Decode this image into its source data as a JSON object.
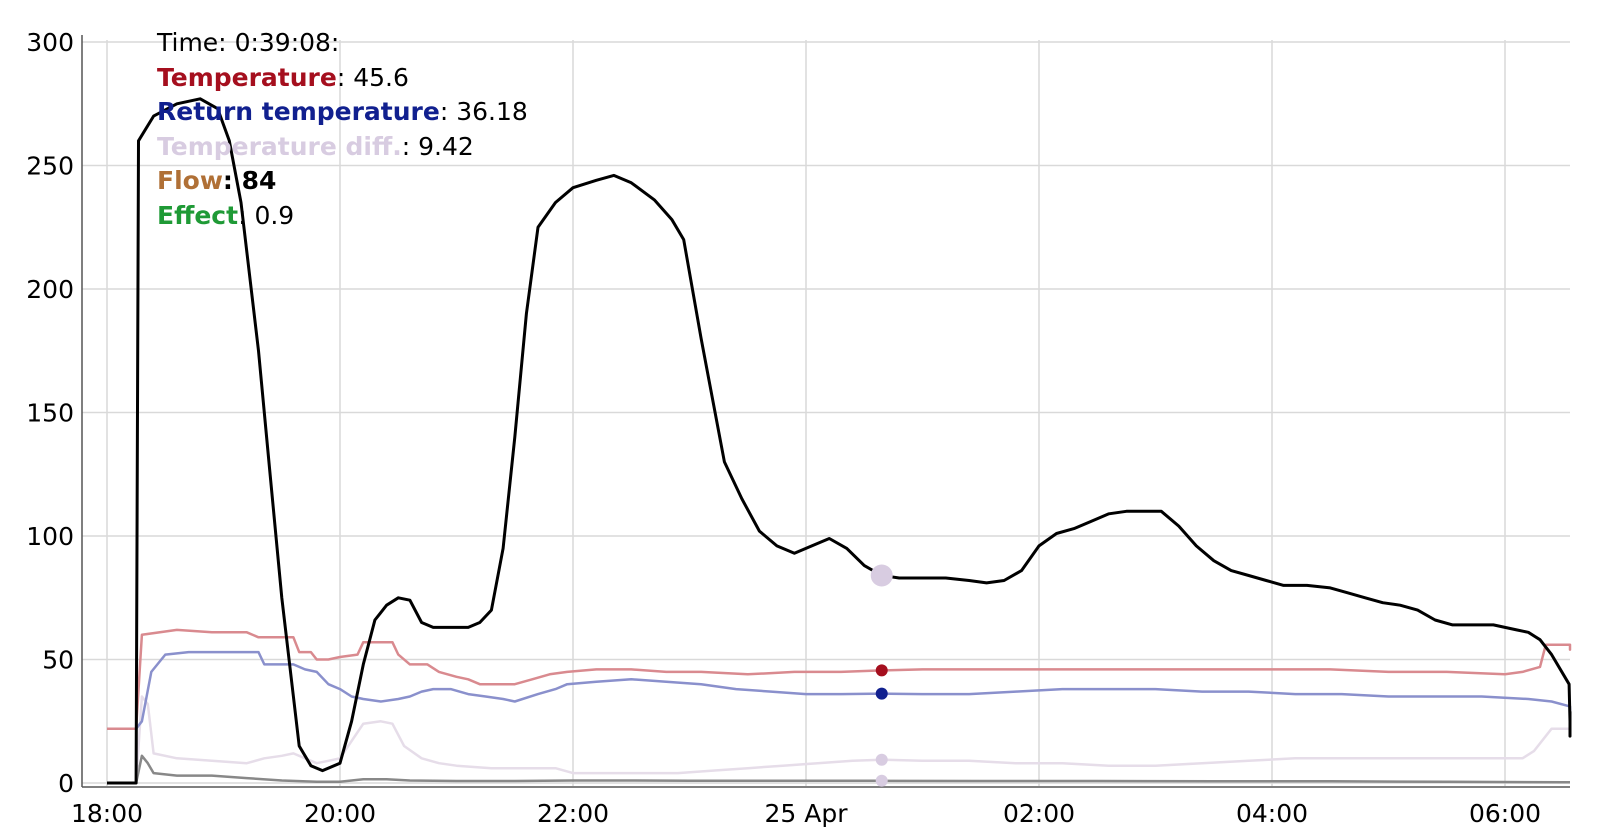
{
  "tooltip": {
    "time_label": "Time:",
    "time_value": "0:39:08:",
    "rows": [
      {
        "name": "Temperature",
        "value": "45.6",
        "color": "#a50f1e"
      },
      {
        "name": "Return temperature",
        "value": "36.18",
        "color": "#11208f"
      },
      {
        "name": "Temperature diff.",
        "value": "9.42",
        "color": "#d8cce1"
      },
      {
        "name": "Flow",
        "value": "84",
        "color": "#b07036",
        "bold_value": true
      },
      {
        "name": "Effect",
        "value": "0.9",
        "color": "#1f9a36"
      }
    ]
  },
  "chart_data": {
    "type": "line",
    "title": "",
    "xlabel": "",
    "ylabel": "",
    "x_unit": "hours since 18:00 on 24 Apr",
    "xlim": [
      0,
      12.75
    ],
    "ylim": [
      0,
      300
    ],
    "yticks": [
      0,
      50,
      100,
      150,
      200,
      250,
      300
    ],
    "xticks": [
      {
        "label": "18:00",
        "x": 0
      },
      {
        "label": "20:00",
        "x": 2
      },
      {
        "label": "22:00",
        "x": 4
      },
      {
        "label": "25 Apr",
        "x": 6
      },
      {
        "label": "02:00",
        "x": 8
      },
      {
        "label": "04:00",
        "x": 10
      },
      {
        "label": "06:00",
        "x": 12
      }
    ],
    "grid": true,
    "hover_x": 6.65,
    "series": [
      {
        "name": "Flow",
        "color": "#000000",
        "width": 3,
        "points": [
          [
            0,
            0
          ],
          [
            0.25,
            0
          ],
          [
            0.27,
            260
          ],
          [
            0.4,
            270
          ],
          [
            0.6,
            275
          ],
          [
            0.8,
            277
          ],
          [
            0.95,
            273
          ],
          [
            1.05,
            260
          ],
          [
            1.15,
            235
          ],
          [
            1.3,
            175
          ],
          [
            1.4,
            125
          ],
          [
            1.5,
            75
          ],
          [
            1.6,
            35
          ],
          [
            1.65,
            15
          ],
          [
            1.75,
            7
          ],
          [
            1.85,
            5
          ],
          [
            2.0,
            8
          ],
          [
            2.1,
            25
          ],
          [
            2.2,
            48
          ],
          [
            2.3,
            66
          ],
          [
            2.4,
            72
          ],
          [
            2.5,
            75
          ],
          [
            2.6,
            74
          ],
          [
            2.7,
            65
          ],
          [
            2.8,
            63
          ],
          [
            3.0,
            63
          ],
          [
            3.1,
            63
          ],
          [
            3.2,
            65
          ],
          [
            3.3,
            70
          ],
          [
            3.4,
            95
          ],
          [
            3.5,
            140
          ],
          [
            3.6,
            190
          ],
          [
            3.7,
            225
          ],
          [
            3.85,
            235
          ],
          [
            4.0,
            241
          ],
          [
            4.2,
            244
          ],
          [
            4.35,
            246
          ],
          [
            4.5,
            243
          ],
          [
            4.7,
            236
          ],
          [
            4.85,
            228
          ],
          [
            4.95,
            220
          ],
          [
            5.1,
            180
          ],
          [
            5.3,
            130
          ],
          [
            5.45,
            115
          ],
          [
            5.6,
            102
          ],
          [
            5.75,
            96
          ],
          [
            5.9,
            93
          ],
          [
            6.05,
            96
          ],
          [
            6.2,
            99
          ],
          [
            6.35,
            95
          ],
          [
            6.5,
            88
          ],
          [
            6.65,
            84
          ],
          [
            6.8,
            83
          ],
          [
            7.0,
            83
          ],
          [
            7.2,
            83
          ],
          [
            7.4,
            82
          ],
          [
            7.55,
            81
          ],
          [
            7.7,
            82
          ],
          [
            7.85,
            86
          ],
          [
            8.0,
            96
          ],
          [
            8.15,
            101
          ],
          [
            8.3,
            103
          ],
          [
            8.45,
            106
          ],
          [
            8.6,
            109
          ],
          [
            8.75,
            110
          ],
          [
            8.9,
            110
          ],
          [
            9.05,
            110
          ],
          [
            9.2,
            104
          ],
          [
            9.35,
            96
          ],
          [
            9.5,
            90
          ],
          [
            9.65,
            86
          ],
          [
            9.8,
            84
          ],
          [
            9.95,
            82
          ],
          [
            10.1,
            80
          ],
          [
            10.3,
            80
          ],
          [
            10.5,
            79
          ],
          [
            10.65,
            77
          ],
          [
            10.8,
            75
          ],
          [
            10.95,
            73
          ],
          [
            11.1,
            72
          ],
          [
            11.25,
            70
          ],
          [
            11.4,
            66
          ],
          [
            11.55,
            64
          ],
          [
            11.7,
            64
          ],
          [
            11.9,
            64
          ],
          [
            12.0,
            63
          ],
          [
            12.1,
            62
          ],
          [
            12.2,
            61
          ],
          [
            12.3,
            58
          ],
          [
            12.4,
            52
          ],
          [
            12.55,
            40
          ],
          [
            12.7,
            25
          ],
          [
            12.8,
            20
          ],
          [
            12.95,
            19
          ],
          [
            13.1,
            19
          ],
          [
            13.25,
            21
          ],
          [
            13.4,
            24
          ],
          [
            13.5,
            27
          ],
          [
            13.6,
            29
          ]
        ]
      },
      {
        "name": "Temperature",
        "color": "#d98a8f",
        "width": 2.5,
        "points": [
          [
            0,
            22
          ],
          [
            0.25,
            22
          ],
          [
            0.3,
            60
          ],
          [
            0.6,
            62
          ],
          [
            0.9,
            61
          ],
          [
            1.2,
            61
          ],
          [
            1.3,
            59
          ],
          [
            1.6,
            59
          ],
          [
            1.65,
            53
          ],
          [
            1.75,
            53
          ],
          [
            1.8,
            50
          ],
          [
            1.9,
            50
          ],
          [
            2.0,
            51
          ],
          [
            2.15,
            52
          ],
          [
            2.2,
            57
          ],
          [
            2.35,
            57
          ],
          [
            2.45,
            57
          ],
          [
            2.5,
            52
          ],
          [
            2.6,
            48
          ],
          [
            2.75,
            48
          ],
          [
            2.85,
            45
          ],
          [
            3.0,
            43
          ],
          [
            3.1,
            42
          ],
          [
            3.2,
            40
          ],
          [
            3.35,
            40
          ],
          [
            3.5,
            40
          ],
          [
            3.65,
            42
          ],
          [
            3.8,
            44
          ],
          [
            3.95,
            45
          ],
          [
            4.2,
            46
          ],
          [
            4.5,
            46
          ],
          [
            4.8,
            45
          ],
          [
            5.1,
            45
          ],
          [
            5.5,
            44
          ],
          [
            5.9,
            45
          ],
          [
            6.3,
            45
          ],
          [
            6.65,
            45.6
          ],
          [
            7.0,
            46
          ],
          [
            7.5,
            46
          ],
          [
            8.0,
            46
          ],
          [
            8.5,
            46
          ],
          [
            9.0,
            46
          ],
          [
            9.5,
            46
          ],
          [
            10.0,
            46
          ],
          [
            10.5,
            46
          ],
          [
            11.0,
            45
          ],
          [
            11.5,
            45
          ],
          [
            12.0,
            44
          ],
          [
            12.15,
            45
          ],
          [
            12.3,
            47
          ],
          [
            12.35,
            56
          ],
          [
            12.6,
            56
          ],
          [
            12.8,
            55
          ],
          [
            12.95,
            54
          ],
          [
            13.2,
            54
          ],
          [
            13.4,
            55
          ],
          [
            13.6,
            56
          ]
        ]
      },
      {
        "name": "Return temperature",
        "color": "#8a90cc",
        "width": 2.5,
        "points": [
          [
            0,
            22
          ],
          [
            0.25,
            22
          ],
          [
            0.3,
            25
          ],
          [
            0.38,
            45
          ],
          [
            0.5,
            52
          ],
          [
            0.7,
            53
          ],
          [
            1.0,
            53
          ],
          [
            1.3,
            53
          ],
          [
            1.35,
            48
          ],
          [
            1.6,
            48
          ],
          [
            1.7,
            46
          ],
          [
            1.8,
            45
          ],
          [
            1.9,
            40
          ],
          [
            2.0,
            38
          ],
          [
            2.1,
            35
          ],
          [
            2.2,
            34
          ],
          [
            2.35,
            33
          ],
          [
            2.5,
            34
          ],
          [
            2.6,
            35
          ],
          [
            2.7,
            37
          ],
          [
            2.8,
            38
          ],
          [
            2.95,
            38
          ],
          [
            3.1,
            36
          ],
          [
            3.25,
            35
          ],
          [
            3.4,
            34
          ],
          [
            3.5,
            33
          ],
          [
            3.7,
            36
          ],
          [
            3.85,
            38
          ],
          [
            3.95,
            40
          ],
          [
            4.2,
            41
          ],
          [
            4.5,
            42
          ],
          [
            4.8,
            41
          ],
          [
            5.1,
            40
          ],
          [
            5.4,
            38
          ],
          [
            5.7,
            37
          ],
          [
            6.0,
            36
          ],
          [
            6.3,
            36
          ],
          [
            6.65,
            36.18
          ],
          [
            7.0,
            36
          ],
          [
            7.4,
            36
          ],
          [
            7.8,
            37
          ],
          [
            8.2,
            38
          ],
          [
            8.6,
            38
          ],
          [
            9.0,
            38
          ],
          [
            9.4,
            37
          ],
          [
            9.8,
            37
          ],
          [
            10.2,
            36
          ],
          [
            10.6,
            36
          ],
          [
            11.0,
            35
          ],
          [
            11.4,
            35
          ],
          [
            11.8,
            35
          ],
          [
            12.2,
            34
          ],
          [
            12.4,
            33
          ],
          [
            12.6,
            31
          ],
          [
            12.9,
            31
          ],
          [
            13.1,
            30
          ],
          [
            13.4,
            30
          ],
          [
            13.6,
            29
          ]
        ]
      },
      {
        "name": "Temperature diff.",
        "color": "#e6dde9",
        "width": 2.5,
        "points": [
          [
            0,
            0
          ],
          [
            0.25,
            0
          ],
          [
            0.3,
            35
          ],
          [
            0.35,
            32
          ],
          [
            0.4,
            12
          ],
          [
            0.6,
            10
          ],
          [
            0.9,
            9
          ],
          [
            1.2,
            8
          ],
          [
            1.35,
            10
          ],
          [
            1.5,
            11
          ],
          [
            1.6,
            12
          ],
          [
            1.7,
            10
          ],
          [
            1.8,
            8
          ],
          [
            1.9,
            9
          ],
          [
            2.0,
            10
          ],
          [
            2.1,
            17
          ],
          [
            2.2,
            24
          ],
          [
            2.35,
            25
          ],
          [
            2.45,
            24
          ],
          [
            2.55,
            15
          ],
          [
            2.7,
            10
          ],
          [
            2.85,
            8
          ],
          [
            3.0,
            7
          ],
          [
            3.3,
            6
          ],
          [
            3.6,
            6
          ],
          [
            3.85,
            6
          ],
          [
            4.0,
            4
          ],
          [
            4.3,
            4
          ],
          [
            4.6,
            4
          ],
          [
            4.9,
            4
          ],
          [
            5.2,
            5
          ],
          [
            5.5,
            6
          ],
          [
            5.8,
            7
          ],
          [
            6.1,
            8
          ],
          [
            6.4,
            9
          ],
          [
            6.65,
            9.42
          ],
          [
            7.0,
            9
          ],
          [
            7.4,
            9
          ],
          [
            7.8,
            8
          ],
          [
            8.2,
            8
          ],
          [
            8.6,
            7
          ],
          [
            9.0,
            7
          ],
          [
            9.4,
            8
          ],
          [
            9.8,
            9
          ],
          [
            10.2,
            10
          ],
          [
            10.6,
            10
          ],
          [
            11.0,
            10
          ],
          [
            11.4,
            10
          ],
          [
            11.8,
            10
          ],
          [
            12.0,
            10
          ],
          [
            12.15,
            10
          ],
          [
            12.25,
            13
          ],
          [
            12.4,
            22
          ],
          [
            12.6,
            22
          ],
          [
            12.8,
            22
          ],
          [
            13.1,
            22
          ],
          [
            13.4,
            22
          ],
          [
            13.6,
            22
          ]
        ]
      },
      {
        "name": "Effect",
        "color": "#888888",
        "width": 2.5,
        "points": [
          [
            0,
            0
          ],
          [
            0.25,
            0
          ],
          [
            0.3,
            11
          ],
          [
            0.35,
            8
          ],
          [
            0.4,
            4
          ],
          [
            0.6,
            3
          ],
          [
            0.9,
            3
          ],
          [
            1.2,
            2
          ],
          [
            1.5,
            1
          ],
          [
            1.8,
            0.5
          ],
          [
            2.0,
            0.5
          ],
          [
            2.2,
            1.5
          ],
          [
            2.4,
            1.5
          ],
          [
            2.6,
            1
          ],
          [
            3.0,
            0.8
          ],
          [
            3.5,
            0.8
          ],
          [
            4.0,
            1
          ],
          [
            4.5,
            1
          ],
          [
            5.0,
            0.9
          ],
          [
            6.0,
            0.9
          ],
          [
            6.65,
            0.9
          ],
          [
            7.5,
            0.8
          ],
          [
            8.5,
            0.8
          ],
          [
            9.5,
            0.7
          ],
          [
            10.5,
            0.7
          ],
          [
            11.5,
            0.5
          ],
          [
            12.5,
            0.3
          ],
          [
            13.6,
            0.3
          ]
        ]
      }
    ],
    "hover_markers": [
      {
        "series": "Flow",
        "y": 84,
        "color": "#d8cce1",
        "r": 11
      },
      {
        "series": "Temperature",
        "y": 45.6,
        "color": "#a50f1e",
        "r": 6
      },
      {
        "series": "Return temperature",
        "y": 36.18,
        "color": "#11208f",
        "r": 6
      },
      {
        "series": "Temperature diff.",
        "y": 9.42,
        "color": "#d8cce1",
        "r": 6
      },
      {
        "series": "Effect",
        "y": 0.9,
        "color": "#d8cce1",
        "r": 6
      }
    ]
  }
}
